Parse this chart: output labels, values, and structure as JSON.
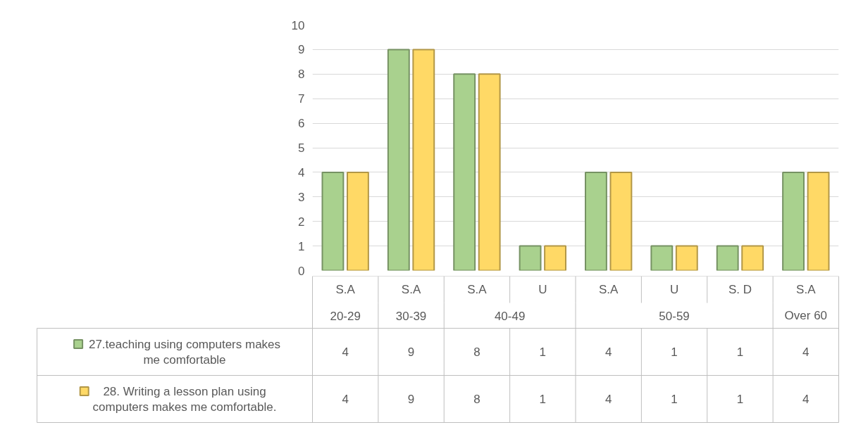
{
  "chart_data": {
    "type": "bar",
    "categories": [
      "S.A",
      "S.A",
      "S.A",
      "U",
      "S.A",
      "U",
      "S. D",
      "S.A"
    ],
    "annotations": [
      "20-29",
      "30-39",
      "40-49",
      "50-59",
      "Over 60"
    ],
    "series": [
      {
        "name": "27.teaching using computers makes me comfortable",
        "color": "#a9d18e",
        "values": [
          4,
          9,
          8,
          1,
          4,
          1,
          1,
          4
        ]
      },
      {
        "name": "28. Writing a lesson plan using computers makes me comfortable.",
        "color": "#ffd966",
        "values": [
          4,
          9,
          8,
          1,
          4,
          1,
          1,
          4
        ]
      }
    ],
    "ylim": [
      0,
      10
    ],
    "yticks": [
      0,
      1,
      2,
      3,
      4,
      5,
      6,
      7,
      8,
      9,
      10
    ],
    "grid": "y",
    "legend": "bottom",
    "data_labels": true
  }
}
